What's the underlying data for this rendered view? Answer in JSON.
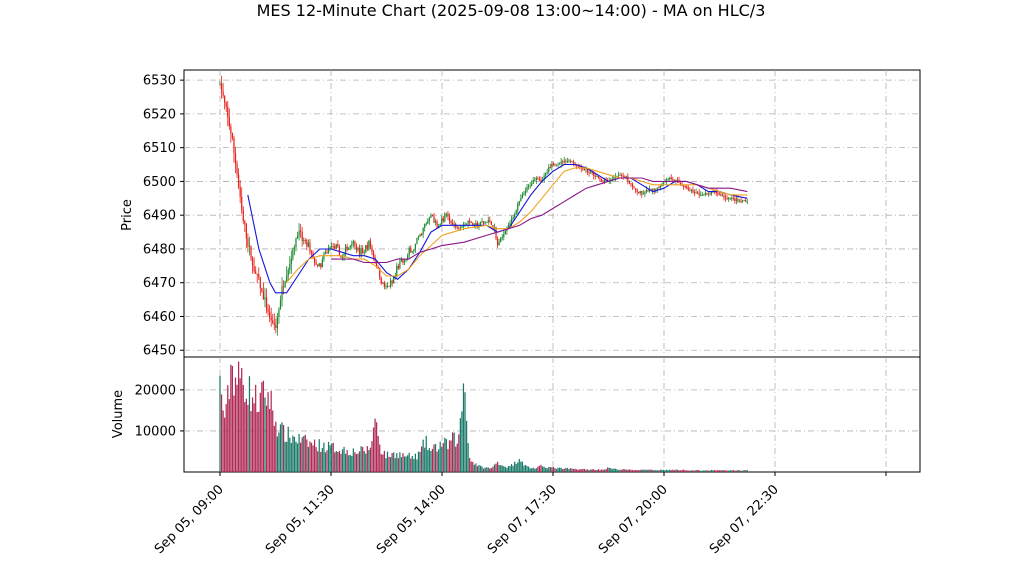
{
  "chart_data": {
    "type": "candlestick",
    "title": "MES 12-Minute Chart (2025-09-08 13:00~14:00) - MA on HLC/3",
    "price_panel": {
      "ylabel": "Price",
      "ylim": [
        6448,
        6533
      ],
      "yticks": [
        6450,
        6460,
        6470,
        6480,
        6490,
        6500,
        6510,
        6520,
        6530
      ],
      "grid": true
    },
    "volume_panel": {
      "ylabel": "Volume",
      "ylim": [
        0,
        28000
      ],
      "yticks": [
        10000,
        20000
      ],
      "grid": true
    },
    "x_index_range": [
      0,
      120
    ],
    "xticks": [
      {
        "index": 0,
        "label": "Sep 05, 09:00"
      },
      {
        "index": 20,
        "label": "Sep 05, 11:30"
      },
      {
        "index": 40,
        "label": "Sep 05, 14:00"
      },
      {
        "index": 60,
        "label": "Sep 07, 17:30"
      },
      {
        "index": 80,
        "label": "Sep 07, 20:00"
      },
      {
        "index": 100,
        "label": "Sep 07, 22:30"
      },
      {
        "index": 120,
        "label": ""
      }
    ],
    "colors": {
      "up": "#1a8a2e",
      "down": "#e8201a",
      "ma_fast": "#1515d9",
      "ma_mid": "#f0a020",
      "ma_slow": "#8b168b",
      "vol_up": "#1a7a6a",
      "vol_down": "#b02a55",
      "grid": "#b0b0b0"
    },
    "price_path": [
      [
        0,
        6529
      ],
      [
        1,
        6521
      ],
      [
        2,
        6514
      ],
      [
        3,
        6503
      ],
      [
        4,
        6490
      ],
      [
        5,
        6481
      ],
      [
        6,
        6474
      ],
      [
        7,
        6470
      ],
      [
        8,
        6464
      ],
      [
        9,
        6459
      ],
      [
        10,
        6456
      ],
      [
        11,
        6466
      ],
      [
        12,
        6472
      ],
      [
        13,
        6478
      ],
      [
        14,
        6484
      ],
      [
        15,
        6482
      ],
      [
        16,
        6480
      ],
      [
        17,
        6476
      ],
      [
        18,
        6474
      ],
      [
        19,
        6478
      ],
      [
        20,
        6481
      ],
      [
        21,
        6479
      ],
      [
        22,
        6477
      ],
      [
        23,
        6480
      ],
      [
        24,
        6482
      ],
      [
        25,
        6478
      ],
      [
        26,
        6479
      ],
      [
        27,
        6481
      ],
      [
        28,
        6476
      ],
      [
        29,
        6470
      ],
      [
        30,
        6468
      ],
      [
        31,
        6469
      ],
      [
        32,
        6474
      ],
      [
        33,
        6476
      ],
      [
        34,
        6478
      ],
      [
        35,
        6480
      ],
      [
        36,
        6483
      ],
      [
        37,
        6487
      ],
      [
        38,
        6490
      ],
      [
        39,
        6486
      ],
      [
        40,
        6488
      ],
      [
        41,
        6489
      ],
      [
        42,
        6487
      ],
      [
        43,
        6486
      ],
      [
        44,
        6487
      ],
      [
        45,
        6488
      ],
      [
        46,
        6486
      ],
      [
        47,
        6487
      ],
      [
        48,
        6488
      ],
      [
        49,
        6487
      ],
      [
        50,
        6481
      ],
      [
        51,
        6484
      ],
      [
        52,
        6487
      ],
      [
        53,
        6490
      ],
      [
        54,
        6494
      ],
      [
        55,
        6497
      ],
      [
        56,
        6499
      ],
      [
        57,
        6501
      ],
      [
        58,
        6500
      ],
      [
        59,
        6503
      ],
      [
        60,
        6505
      ],
      [
        61,
        6505
      ],
      [
        62,
        6506
      ],
      [
        63,
        6506
      ],
      [
        64,
        6505
      ],
      [
        65,
        6504
      ],
      [
        66,
        6503
      ],
      [
        67,
        6502
      ],
      [
        68,
        6501
      ],
      [
        69,
        6500
      ],
      [
        70,
        6500
      ],
      [
        71,
        6501
      ],
      [
        72,
        6502
      ],
      [
        73,
        6501
      ],
      [
        74,
        6499
      ],
      [
        75,
        6497
      ],
      [
        76,
        6496
      ],
      [
        77,
        6497
      ],
      [
        78,
        6497
      ],
      [
        79,
        6498
      ],
      [
        80,
        6500
      ],
      [
        81,
        6501
      ],
      [
        82,
        6500
      ],
      [
        83,
        6499
      ],
      [
        84,
        6498
      ],
      [
        85,
        6497
      ],
      [
        86,
        6496
      ],
      [
        87,
        6496
      ],
      [
        88,
        6496
      ],
      [
        89,
        6497
      ],
      [
        90,
        6496
      ],
      [
        91,
        6495
      ],
      [
        92,
        6495
      ],
      [
        93,
        6494
      ],
      [
        94,
        6494
      ],
      [
        95,
        6494
      ]
    ],
    "volume_path": [
      [
        0,
        21000
      ],
      [
        1,
        12000
      ],
      [
        2,
        26000
      ],
      [
        3,
        22000
      ],
      [
        4,
        23000
      ],
      [
        5,
        20000
      ],
      [
        6,
        18000
      ],
      [
        7,
        17000
      ],
      [
        8,
        19000
      ],
      [
        9,
        18000
      ],
      [
        10,
        12000
      ],
      [
        11,
        10000
      ],
      [
        12,
        9000
      ],
      [
        13,
        8500
      ],
      [
        14,
        8000
      ],
      [
        15,
        7500
      ],
      [
        16,
        7000
      ],
      [
        17,
        6800
      ],
      [
        18,
        6500
      ],
      [
        19,
        6200
      ],
      [
        20,
        6000
      ],
      [
        21,
        5800
      ],
      [
        22,
        5500
      ],
      [
        23,
        5200
      ],
      [
        24,
        5000
      ],
      [
        25,
        5000
      ],
      [
        26,
        5200
      ],
      [
        27,
        5500
      ],
      [
        28,
        13000
      ],
      [
        29,
        5500
      ],
      [
        30,
        4000
      ],
      [
        31,
        4200
      ],
      [
        32,
        4500
      ],
      [
        33,
        4000
      ],
      [
        34,
        3800
      ],
      [
        35,
        3500
      ],
      [
        36,
        4500
      ],
      [
        37,
        7500
      ],
      [
        38,
        5000
      ],
      [
        39,
        6000
      ],
      [
        40,
        7000
      ],
      [
        41,
        6500
      ],
      [
        42,
        8000
      ],
      [
        43,
        7500
      ],
      [
        44,
        23000
      ],
      [
        45,
        3000
      ],
      [
        46,
        2000
      ],
      [
        47,
        1200
      ],
      [
        48,
        1000
      ],
      [
        49,
        900
      ],
      [
        50,
        2500
      ],
      [
        51,
        1500
      ],
      [
        52,
        1200
      ],
      [
        53,
        2000
      ],
      [
        54,
        3500
      ],
      [
        55,
        1500
      ],
      [
        56,
        1000
      ],
      [
        57,
        900
      ],
      [
        58,
        1500
      ],
      [
        59,
        1200
      ],
      [
        60,
        1000
      ],
      [
        61,
        900
      ],
      [
        62,
        800
      ],
      [
        63,
        800
      ],
      [
        64,
        700
      ],
      [
        65,
        700
      ],
      [
        66,
        600
      ],
      [
        67,
        600
      ],
      [
        68,
        600
      ],
      [
        69,
        600
      ],
      [
        70,
        1000
      ],
      [
        71,
        700
      ],
      [
        72,
        600
      ],
      [
        73,
        600
      ],
      [
        74,
        500
      ],
      [
        75,
        500
      ],
      [
        76,
        500
      ],
      [
        77,
        500
      ],
      [
        78,
        500
      ],
      [
        79,
        500
      ],
      [
        80,
        500
      ],
      [
        81,
        500
      ],
      [
        82,
        500
      ],
      [
        83,
        500
      ],
      [
        84,
        500
      ],
      [
        85,
        400
      ],
      [
        86,
        400
      ],
      [
        87,
        400
      ],
      [
        88,
        400
      ],
      [
        89,
        400
      ],
      [
        90,
        400
      ],
      [
        91,
        400
      ],
      [
        92,
        400
      ],
      [
        93,
        400
      ],
      [
        94,
        400
      ],
      [
        95,
        400
      ]
    ],
    "ma_fast_path": [
      [
        5,
        6496
      ],
      [
        7,
        6480
      ],
      [
        9,
        6470
      ],
      [
        10,
        6467
      ],
      [
        12,
        6467
      ],
      [
        14,
        6472
      ],
      [
        16,
        6477
      ],
      [
        18,
        6480
      ],
      [
        20,
        6480
      ],
      [
        22,
        6479
      ],
      [
        24,
        6478
      ],
      [
        26,
        6478
      ],
      [
        28,
        6477
      ],
      [
        30,
        6473
      ],
      [
        32,
        6471
      ],
      [
        34,
        6474
      ],
      [
        36,
        6479
      ],
      [
        38,
        6485
      ],
      [
        40,
        6487
      ],
      [
        44,
        6487
      ],
      [
        48,
        6487
      ],
      [
        50,
        6485
      ],
      [
        52,
        6486
      ],
      [
        54,
        6491
      ],
      [
        56,
        6496
      ],
      [
        58,
        6500
      ],
      [
        60,
        6503
      ],
      [
        62,
        6505
      ],
      [
        64,
        6505
      ],
      [
        66,
        6504
      ],
      [
        68,
        6502
      ],
      [
        70,
        6500
      ],
      [
        72,
        6501
      ],
      [
        74,
        6501
      ],
      [
        76,
        6499
      ],
      [
        78,
        6497
      ],
      [
        80,
        6498
      ],
      [
        82,
        6500
      ],
      [
        84,
        6500
      ],
      [
        86,
        6499
      ],
      [
        88,
        6497
      ],
      [
        90,
        6497
      ],
      [
        92,
        6496
      ],
      [
        95,
        6495
      ]
    ],
    "ma_mid_path": [
      [
        12,
        6470
      ],
      [
        14,
        6474
      ],
      [
        16,
        6477
      ],
      [
        18,
        6478
      ],
      [
        20,
        6478
      ],
      [
        22,
        6478
      ],
      [
        24,
        6477
      ],
      [
        26,
        6477
      ],
      [
        28,
        6475
      ],
      [
        30,
        6472
      ],
      [
        32,
        6472
      ],
      [
        34,
        6474
      ],
      [
        36,
        6478
      ],
      [
        38,
        6481
      ],
      [
        40,
        6484
      ],
      [
        44,
        6486
      ],
      [
        48,
        6487
      ],
      [
        50,
        6486
      ],
      [
        52,
        6486
      ],
      [
        54,
        6488
      ],
      [
        56,
        6491
      ],
      [
        58,
        6495
      ],
      [
        60,
        6499
      ],
      [
        62,
        6503
      ],
      [
        64,
        6504
      ],
      [
        66,
        6504
      ],
      [
        68,
        6503
      ],
      [
        70,
        6502
      ],
      [
        72,
        6501
      ],
      [
        74,
        6501
      ],
      [
        76,
        6500
      ],
      [
        78,
        6499
      ],
      [
        80,
        6499
      ],
      [
        82,
        6499
      ],
      [
        84,
        6499
      ],
      [
        86,
        6499
      ],
      [
        88,
        6498
      ],
      [
        90,
        6497
      ],
      [
        92,
        6496
      ],
      [
        95,
        6496
      ]
    ],
    "ma_slow_path": [
      [
        20,
        6477
      ],
      [
        22,
        6477
      ],
      [
        24,
        6477
      ],
      [
        26,
        6476
      ],
      [
        28,
        6476
      ],
      [
        30,
        6476
      ],
      [
        32,
        6477
      ],
      [
        34,
        6477
      ],
      [
        36,
        6479
      ],
      [
        38,
        6480
      ],
      [
        40,
        6481
      ],
      [
        44,
        6482
      ],
      [
        48,
        6484
      ],
      [
        50,
        6485
      ],
      [
        52,
        6486
      ],
      [
        54,
        6487
      ],
      [
        56,
        6489
      ],
      [
        58,
        6490
      ],
      [
        60,
        6492
      ],
      [
        62,
        6494
      ],
      [
        64,
        6496
      ],
      [
        66,
        6498
      ],
      [
        68,
        6499
      ],
      [
        70,
        6500
      ],
      [
        72,
        6501
      ],
      [
        74,
        6501
      ],
      [
        76,
        6501
      ],
      [
        78,
        6500
      ],
      [
        80,
        6500
      ],
      [
        82,
        6500
      ],
      [
        84,
        6500
      ],
      [
        86,
        6499
      ],
      [
        88,
        6498
      ],
      [
        90,
        6498
      ],
      [
        92,
        6498
      ],
      [
        95,
        6497
      ]
    ]
  }
}
